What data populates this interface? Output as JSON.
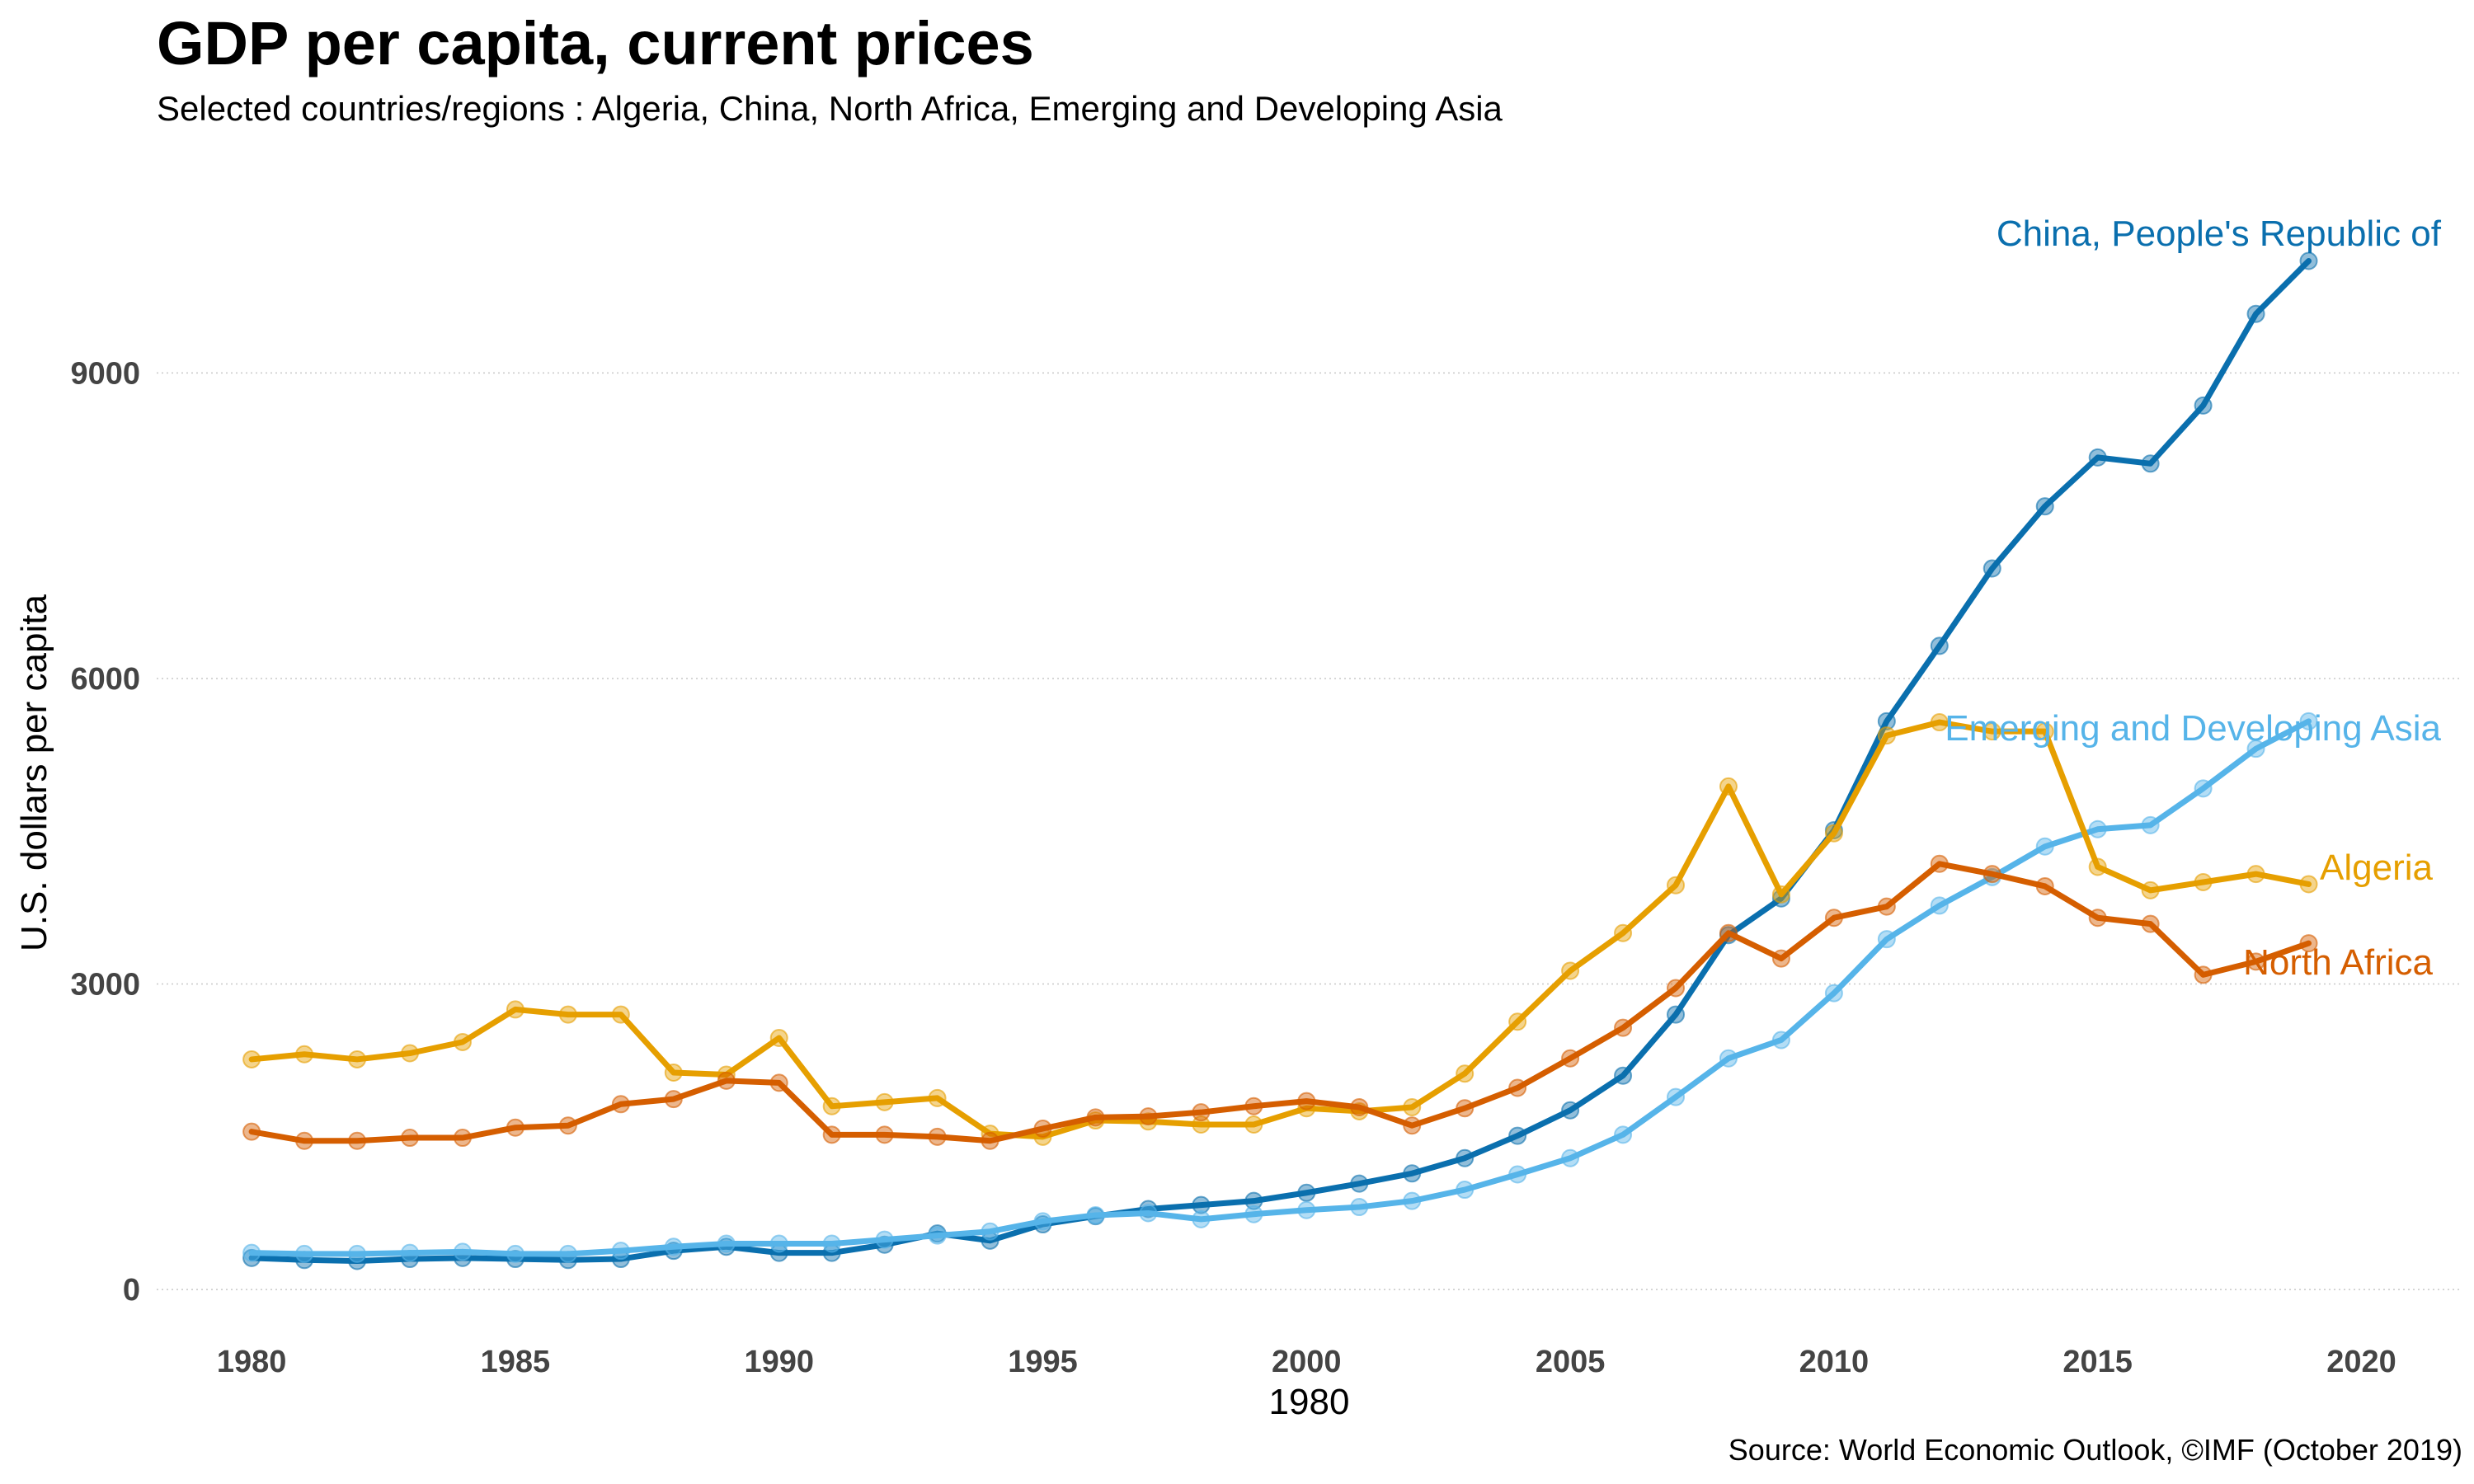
{
  "chart_data": {
    "type": "line",
    "title": "GDP per capita, current prices",
    "subtitle": "Selected countries/regions : Algeria, China, North Africa, Emerging and Developing Asia",
    "xlabel": "1980",
    "ylabel": "U.S. dollars per capita",
    "source": "Source: World Economic Outlook, ©IMF (October 2019)",
    "xlim": [
      1978.2,
      2021.9
    ],
    "ylim": [
      -250,
      10800
    ],
    "xticks": [
      1980,
      1985,
      1990,
      1995,
      2000,
      2005,
      2010,
      2015,
      2020
    ],
    "yticks": [
      0,
      3000,
      6000,
      9000
    ],
    "grid": "horizontal dotted",
    "x": [
      1980,
      1981,
      1982,
      1983,
      1984,
      1985,
      1986,
      1987,
      1988,
      1989,
      1990,
      1991,
      1992,
      1993,
      1994,
      1995,
      1996,
      1997,
      1998,
      1999,
      2000,
      2001,
      2002,
      2003,
      2004,
      2005,
      2006,
      2007,
      2008,
      2009,
      2010,
      2011,
      2012,
      2013,
      2014,
      2015,
      2016,
      2017,
      2018,
      2019
    ],
    "series": [
      {
        "name": "China, People's Republic of",
        "color": "#0a6fae",
        "values": [
          310,
          290,
          280,
          300,
          310,
          300,
          290,
          300,
          380,
          420,
          360,
          360,
          440,
          550,
          480,
          640,
          720,
          790,
          830,
          870,
          950,
          1040,
          1140,
          1290,
          1510,
          1760,
          2100,
          2700,
          3480,
          3840,
          4510,
          5580,
          6320,
          7080,
          7690,
          8170,
          8110,
          8680,
          9580,
          10100
        ]
      },
      {
        "name": "Emerging and Developing Asia",
        "color": "#56b4e9",
        "values": [
          360,
          350,
          350,
          360,
          370,
          350,
          350,
          380,
          420,
          450,
          450,
          450,
          490,
          530,
          570,
          670,
          730,
          750,
          690,
          740,
          780,
          810,
          870,
          980,
          1130,
          1290,
          1520,
          1890,
          2270,
          2450,
          2910,
          3440,
          3770,
          4050,
          4350,
          4520,
          4560,
          4920,
          5310,
          5580
        ]
      },
      {
        "name": "Algeria",
        "color": "#e69f00",
        "values": [
          2260,
          2310,
          2260,
          2320,
          2430,
          2750,
          2700,
          2700,
          2130,
          2110,
          2470,
          1800,
          1840,
          1880,
          1530,
          1500,
          1660,
          1650,
          1620,
          1620,
          1780,
          1750,
          1790,
          2120,
          2630,
          3130,
          3500,
          3970,
          4940,
          3880,
          4480,
          5440,
          5570,
          5480,
          5480,
          4150,
          3920,
          4000,
          4080,
          3980
        ]
      },
      {
        "name": "North Africa",
        "color": "#d55e00",
        "values": [
          1550,
          1460,
          1460,
          1490,
          1490,
          1590,
          1610,
          1820,
          1870,
          2050,
          2030,
          1520,
          1520,
          1500,
          1460,
          1580,
          1690,
          1700,
          1740,
          1800,
          1850,
          1790,
          1610,
          1780,
          1980,
          2270,
          2570,
          2960,
          3500,
          3250,
          3650,
          3760,
          4180,
          4080,
          3960,
          3650,
          3590,
          3090,
          3220,
          3400
        ]
      }
    ]
  }
}
